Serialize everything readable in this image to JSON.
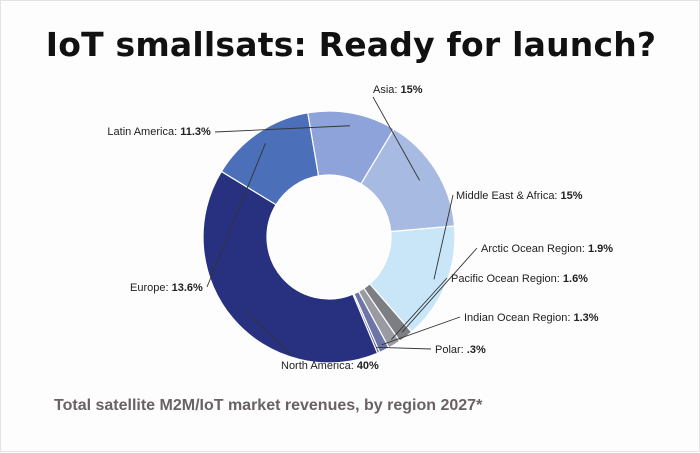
{
  "chart_data": {
    "type": "pie",
    "title": "IoT smallsats: Ready for launch?",
    "subtitle": "Total satellite M2M/IoT market revenues, by region 2027*",
    "slices": [
      {
        "label": "Asia",
        "value_text": "15%",
        "value": 15,
        "color": "#a7bbe2"
      },
      {
        "label": "Middle East & Africa",
        "value_text": "15%",
        "value": 15,
        "color": "#c8e6f8"
      },
      {
        "label": "Arctic Ocean Region",
        "value_text": "1.9%",
        "value": 1.9,
        "color": "#7d7d84"
      },
      {
        "label": "Pacific Ocean Region",
        "value_text": "1.6%",
        "value": 1.6,
        "color": "#9a9aa3"
      },
      {
        "label": "Indian Ocean Region",
        "value_text": "1.3%",
        "value": 1.3,
        "color": "#6c74a8"
      },
      {
        "label": "Polar",
        "value_text": ".3%",
        "value": 0.3,
        "color": "#43509a"
      },
      {
        "label": "North America",
        "value_text": "40%",
        "value": 40,
        "color": "#273180"
      },
      {
        "label": "Europe",
        "value_text": "13.6%",
        "value": 13.6,
        "color": "#4b6fb8"
      },
      {
        "label": "Latin America",
        "value_text": "11.3%",
        "value": 11.3,
        "color": "#8ea3d9"
      }
    ]
  }
}
